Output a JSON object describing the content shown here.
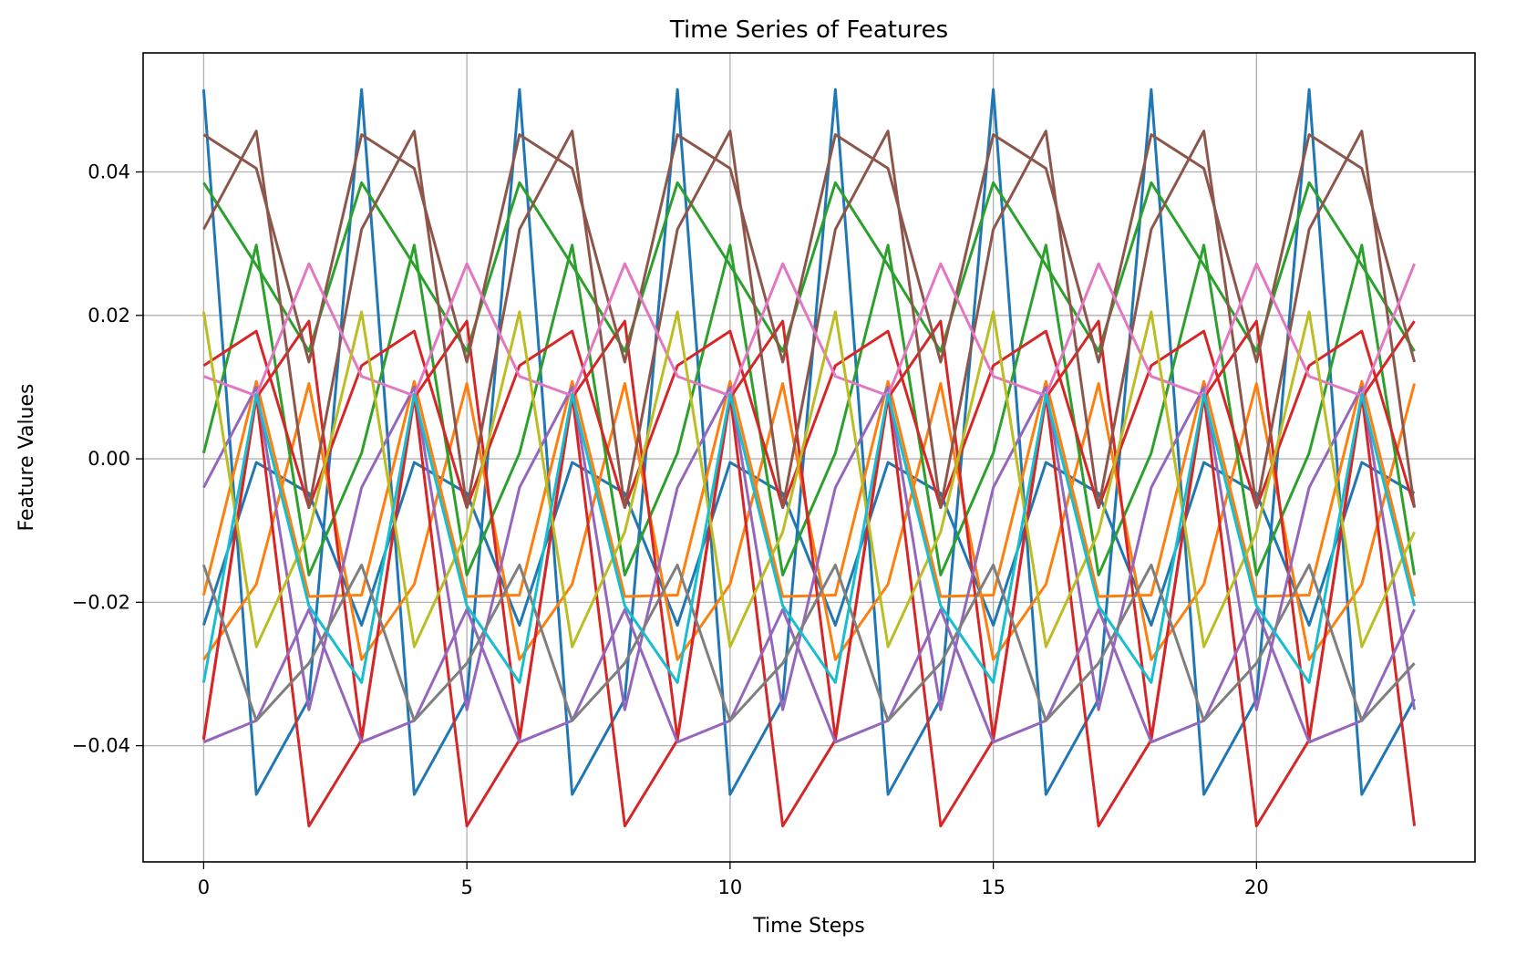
{
  "chart_data": {
    "type": "line",
    "title": "Time Series of Features",
    "xlabel": "Time Steps",
    "ylabel": "Feature Values",
    "xlim": [
      -1.15,
      24.15
    ],
    "ylim": [
      -0.0562,
      0.0566
    ],
    "xticks": [
      0,
      5,
      10,
      15,
      20
    ],
    "xtick_labels": [
      "0",
      "5",
      "10",
      "15",
      "20"
    ],
    "yticks": [
      -0.04,
      -0.02,
      0.0,
      0.02,
      0.04
    ],
    "ytick_labels": [
      "−0.04",
      "−0.02",
      "0.00",
      "0.02",
      "0.04"
    ],
    "grid": true,
    "x": [
      0,
      1,
      2,
      3,
      4,
      5,
      6,
      7,
      8,
      9,
      10,
      11,
      12,
      13,
      14,
      15,
      16,
      17,
      18,
      19,
      20,
      21,
      22,
      23
    ],
    "series": [
      {
        "color": "#1f77b4",
        "period_values": [
          0.0515,
          -0.0468,
          -0.0335
        ],
        "tail": [
          0.0515,
          -0.0468,
          -0.0335
        ]
      },
      {
        "color": "#1f77b4",
        "period_values": [
          -0.0232,
          -0.0005,
          -0.0048
        ],
        "tail": [
          -0.0232,
          -0.0005,
          -0.0048
        ]
      },
      {
        "color": "#ff7f0e",
        "period_values": [
          -0.028,
          -0.0175,
          0.0105
        ],
        "tail": [
          -0.028,
          -0.0175,
          0.0105
        ]
      },
      {
        "color": "#ff7f0e",
        "period_values": [
          -0.019,
          0.0108,
          -0.0192
        ],
        "tail": [
          -0.019,
          0.0108,
          -0.0192
        ]
      },
      {
        "color": "#2ca02c",
        "period_values": [
          0.0385,
          0.027,
          0.015
        ],
        "tail": [
          0.0385,
          0.027,
          0.015
        ]
      },
      {
        "color": "#2ca02c",
        "period_values": [
          0.0008,
          0.0298,
          -0.0162
        ],
        "tail": [
          0.0008,
          0.0298,
          -0.0162
        ]
      },
      {
        "color": "#d62728",
        "period_values": [
          0.013,
          0.0178,
          -0.0068
        ],
        "tail": [
          0.013,
          0.0178,
          -0.0068
        ]
      },
      {
        "color": "#d62728",
        "period_values": [
          -0.0392,
          0.009,
          -0.0512
        ],
        "tail": [
          -0.0392,
          0.009,
          -0.0512
        ]
      },
      {
        "color": "#d62728",
        "period_values": [
          -0.039,
          0.0085,
          0.0192
        ],
        "tail": [
          -0.039,
          0.0085,
          0.0192
        ]
      },
      {
        "color": "#9467bd",
        "period_values": [
          -0.004,
          0.01,
          -0.035
        ],
        "tail": [
          -0.004,
          0.01,
          -0.035
        ]
      },
      {
        "color": "#9467bd",
        "period_values": [
          -0.0395,
          -0.0365,
          -0.021
        ],
        "tail": [
          -0.0395,
          -0.0365,
          -0.021
        ]
      },
      {
        "color": "#8c564b",
        "period_values": [
          0.0452,
          0.0405,
          0.0135
        ],
        "tail": [
          0.0452,
          0.0405,
          0.0135
        ]
      },
      {
        "color": "#8c564b",
        "period_values": [
          0.032,
          0.0457,
          -0.0068
        ],
        "tail": [
          0.032,
          0.0457,
          -0.0068
        ]
      },
      {
        "color": "#e377c2",
        "period_values": [
          0.0115,
          0.0088,
          0.0272
        ],
        "tail": [
          0.0115,
          0.0088,
          0.0272
        ]
      },
      {
        "color": "#7f7f7f",
        "period_values": [
          -0.0148,
          -0.0365,
          -0.0285
        ],
        "tail": [
          -0.0148,
          -0.0365,
          -0.0285
        ]
      },
      {
        "color": "#bcbd22",
        "period_values": [
          0.0205,
          -0.0262,
          -0.0102
        ],
        "tail": [
          0.0205,
          -0.0262,
          -0.0102
        ]
      },
      {
        "color": "#17becf",
        "period_values": [
          -0.0312,
          0.009,
          -0.0205
        ],
        "tail": [
          -0.0312,
          0.009,
          -0.0205
        ]
      }
    ]
  }
}
